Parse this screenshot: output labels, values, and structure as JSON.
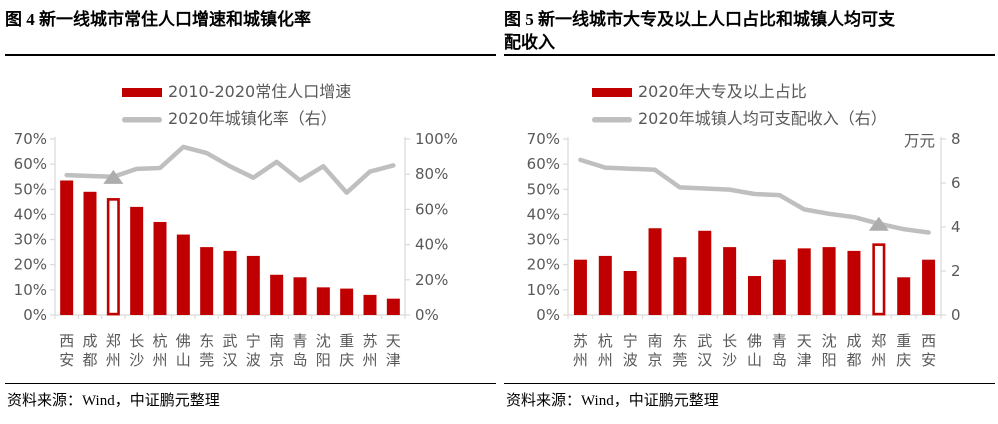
{
  "colors": {
    "bar": "#C00000",
    "bar_highlight_fill": "#FFFFFF",
    "line": "#BFBFBF",
    "marker": "#ADADAD",
    "axis": "#D9D9D9",
    "tick_text": "#595959"
  },
  "chart_data": [
    {
      "id": "figure-4",
      "type": "bar+line",
      "title": "图 4 新一线城市常住人口增速和城镇化率",
      "source": "资料来源：Wind，中证鹏元整理",
      "categories": [
        "西安",
        "成都",
        "郑州",
        "长沙",
        "杭州",
        "佛山",
        "东莞",
        "武汉",
        "宁波",
        "南京",
        "青岛",
        "沈阳",
        "重庆",
        "苏州",
        "天津"
      ],
      "series": [
        {
          "name": "2010-2020常住人口增速",
          "type": "bar",
          "axis": "left",
          "unit": "%",
          "values": [
            53.5,
            49,
            46.5,
            43,
            37,
            32,
            27,
            25.5,
            23.5,
            16,
            15,
            11,
            10.5,
            8,
            6.5
          ],
          "highlight_category": "郑州",
          "highlight_style": "hollow"
        },
        {
          "name": "2020年城镇化率（右）",
          "type": "line",
          "axis": "right",
          "unit": "%",
          "values": [
            79.5,
            79,
            78.5,
            83,
            83.5,
            95.5,
            92,
            84.5,
            78,
            87,
            76.5,
            84.5,
            69.5,
            81.5,
            85
          ],
          "marker_category": "郑州",
          "marker": "triangle"
        }
      ],
      "left_axis": {
        "min": 0,
        "max": 70,
        "step": 10,
        "format": "percent"
      },
      "right_axis": {
        "min": 0,
        "max": 100,
        "step": 20,
        "format": "percent"
      },
      "legend_position": "top"
    },
    {
      "id": "figure-5",
      "type": "bar+line",
      "title": "图 5 新一线城市大专及以上人口占比和城镇人均可支配收入",
      "source": "资料来源：Wind，中证鹏元整理",
      "categories": [
        "苏州",
        "杭州",
        "宁波",
        "南京",
        "东莞",
        "武汉",
        "长沙",
        "佛山",
        "青岛",
        "天津",
        "沈阳",
        "成都",
        "郑州",
        "重庆",
        "西安"
      ],
      "series": [
        {
          "name": "2020年大专及以上占比",
          "type": "bar",
          "axis": "left",
          "unit": "%",
          "values": [
            22,
            23.5,
            17.5,
            34.5,
            23,
            33.5,
            27,
            15.5,
            22,
            26.5,
            27,
            25.5,
            28.5,
            15,
            22
          ],
          "highlight_category": "郑州",
          "highlight_style": "hollow"
        },
        {
          "name": "2020年城镇人均可支配收入（右）",
          "type": "line",
          "axis": "right",
          "unit": "万元",
          "values": [
            7.05,
            6.7,
            6.65,
            6.6,
            5.8,
            5.75,
            5.7,
            5.5,
            5.45,
            4.8,
            4.6,
            4.45,
            4.15,
            3.9,
            3.75
          ],
          "marker_category": "郑州",
          "marker": "triangle"
        }
      ],
      "left_axis": {
        "min": 0,
        "max": 70,
        "step": 10,
        "format": "percent"
      },
      "right_axis": {
        "min": 0,
        "max": 8,
        "step": 2,
        "format": "number",
        "unit_label": "万元"
      },
      "legend_position": "top"
    }
  ]
}
